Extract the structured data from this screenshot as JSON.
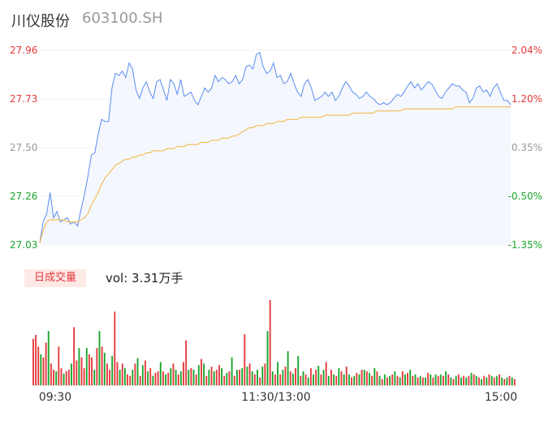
{
  "header": {
    "name": "川仪股份",
    "code": "603100.SH"
  },
  "volume_panel": {
    "tab_label": "日成交量",
    "vol_text": "vol: 3.31万手"
  },
  "colors": {
    "up": "#e5393b",
    "down": "#1aa52c",
    "price_line": "#5b8def",
    "avg_line": "#f3b33d"
  },
  "chart_data": [
    {
      "type": "line",
      "y_left_ticks": [
        "27.96",
        "27.73",
        "27.50",
        "27.26",
        "27.03"
      ],
      "y_right_ticks": [
        "2.04%",
        "1.20%",
        "0.35%",
        "-0.50%",
        "-1.35%"
      ],
      "ylim": [
        27.03,
        27.96
      ],
      "x_ticks": [
        "09:30",
        "11:30/13:00",
        "15:00"
      ],
      "series": [
        {
          "values": [
            27.04,
            27.14,
            27.18,
            27.28,
            27.16,
            27.19,
            27.14,
            27.15,
            27.16,
            27.13,
            27.14,
            27.12,
            27.2,
            27.27,
            27.36,
            27.46,
            27.47,
            27.56,
            27.63,
            27.62,
            27.62,
            27.78,
            27.85,
            27.84,
            27.86,
            27.83,
            27.9,
            27.87,
            27.77,
            27.73,
            27.78,
            27.81,
            27.76,
            27.73,
            27.81,
            27.82,
            27.77,
            27.72,
            27.82,
            27.8,
            27.75,
            27.82,
            27.74,
            27.75,
            27.76,
            27.72,
            27.7,
            27.74,
            27.78,
            27.76,
            27.78,
            27.84,
            27.81,
            27.83,
            27.82,
            27.8,
            27.81,
            27.84,
            27.8,
            27.82,
            27.88,
            27.89,
            27.87,
            27.94,
            27.95,
            27.88,
            27.85,
            27.86,
            27.9,
            27.83,
            27.84,
            27.8,
            27.81,
            27.85,
            27.8,
            27.76,
            27.74,
            27.8,
            27.82,
            27.78,
            27.72,
            27.73,
            27.74,
            27.76,
            27.74,
            27.76,
            27.72,
            27.74,
            27.78,
            27.81,
            27.79,
            27.76,
            27.75,
            27.73,
            27.74,
            27.76,
            27.74,
            27.73,
            27.71,
            27.7,
            27.71,
            27.7,
            27.71,
            27.73,
            27.75,
            27.74,
            27.76,
            27.79,
            27.81,
            27.78,
            27.8,
            27.77,
            27.79,
            27.81,
            27.8,
            27.77,
            27.74,
            27.73,
            27.76,
            27.78,
            27.8,
            27.79,
            27.79,
            27.77,
            27.76,
            27.71,
            27.73,
            27.78,
            27.79,
            27.76,
            27.77,
            27.74,
            27.78,
            27.8,
            27.76,
            27.72,
            27.72,
            27.7
          ]
        },
        {
          "values": [
            27.04,
            27.1,
            27.14,
            27.15,
            27.15,
            27.15,
            27.15,
            27.15,
            27.14,
            27.14,
            27.14,
            27.14,
            27.15,
            27.16,
            27.18,
            27.22,
            27.25,
            27.28,
            27.32,
            27.35,
            27.37,
            27.39,
            27.41,
            27.42,
            27.43,
            27.44,
            27.44,
            27.45,
            27.45,
            27.46,
            27.46,
            27.47,
            27.47,
            27.48,
            27.48,
            27.48,
            27.48,
            27.49,
            27.49,
            27.49,
            27.5,
            27.5,
            27.5,
            27.51,
            27.51,
            27.51,
            27.51,
            27.52,
            27.52,
            27.52,
            27.53,
            27.53,
            27.53,
            27.54,
            27.54,
            27.54,
            27.55,
            27.55,
            27.56,
            27.57,
            27.58,
            27.59,
            27.59,
            27.6,
            27.6,
            27.6,
            27.61,
            27.61,
            27.61,
            27.62,
            27.62,
            27.62,
            27.63,
            27.63,
            27.63,
            27.63,
            27.64,
            27.64,
            27.64,
            27.64,
            27.64,
            27.64,
            27.64,
            27.65,
            27.65,
            27.65,
            27.65,
            27.65,
            27.65,
            27.65,
            27.65,
            27.66,
            27.66,
            27.66,
            27.66,
            27.66,
            27.66,
            27.66,
            27.67,
            27.67,
            27.67,
            27.67,
            27.67,
            27.67,
            27.67,
            27.67,
            27.68,
            27.68,
            27.68,
            27.68,
            27.68,
            27.68,
            27.68,
            27.68,
            27.68,
            27.68,
            27.68,
            27.68,
            27.68,
            27.68,
            27.68,
            27.69,
            27.69,
            27.69,
            27.69,
            27.69,
            27.69,
            27.69,
            27.69,
            27.69,
            27.69,
            27.69,
            27.69,
            27.69,
            27.69,
            27.69,
            27.69,
            27.69
          ]
        }
      ]
    },
    {
      "type": "bar",
      "series": [
        {
          "values": [
            60,
            65,
            50,
            40,
            36,
            55,
            70,
            28,
            20,
            18,
            50,
            22,
            15,
            18,
            20,
            28,
            75,
            32,
            48,
            36,
            22,
            48,
            40,
            36,
            20,
            48,
            70,
            50,
            42,
            28,
            20,
            38,
            95,
            30,
            20,
            28,
            22,
            14,
            12,
            20,
            28,
            35,
            12,
            26,
            32,
            18,
            22,
            12,
            16,
            18,
            30,
            18,
            14,
            16,
            22,
            28,
            20,
            14,
            18,
            30,
            58,
            20,
            22,
            20,
            14,
            26,
            34,
            28,
            12,
            20,
            24,
            18,
            20,
            26,
            22,
            12,
            16,
            18,
            36,
            12,
            20,
            20,
            22,
            66,
            24,
            28,
            18,
            14,
            20,
            10,
            24,
            28,
            70,
            110,
            18,
            14,
            30,
            14,
            20,
            24,
            44,
            18,
            15,
            22,
            38,
            12,
            18,
            14,
            10,
            22,
            14,
            20,
            25,
            14,
            20,
            30,
            12,
            20,
            14,
            12,
            22,
            18,
            14,
            24,
            14,
            10,
            12,
            16,
            14,
            20,
            20,
            18,
            16,
            12,
            22,
            18,
            12,
            8,
            14,
            10,
            12,
            14,
            18,
            12,
            10,
            18,
            14,
            16,
            20,
            12,
            14,
            10,
            12,
            10,
            10,
            16,
            14,
            10,
            14,
            12,
            14,
            12,
            18,
            14,
            10,
            8,
            12,
            14,
            10,
            12,
            10,
            12,
            16,
            14,
            12,
            10,
            8,
            12,
            10,
            14,
            12,
            10,
            12,
            14,
            10,
            8,
            10,
            12,
            10,
            8
          ],
          "direction": [
            "up",
            "up",
            "up",
            "down",
            "up",
            "up",
            "down",
            "up",
            "up",
            "down",
            "up",
            "up",
            "down",
            "up",
            "up",
            "down",
            "up",
            "up",
            "down",
            "up",
            "up",
            "down",
            "up",
            "up",
            "down",
            "up",
            "down",
            "up",
            "down",
            "up",
            "up",
            "down",
            "up",
            "up",
            "down",
            "up",
            "down",
            "up",
            "up",
            "down",
            "up",
            "down",
            "up",
            "down",
            "up",
            "down",
            "up",
            "down",
            "up",
            "up",
            "down",
            "up",
            "down",
            "up",
            "down",
            "up",
            "down",
            "up",
            "down",
            "up",
            "up",
            "down",
            "up",
            "down",
            "up",
            "down",
            "up",
            "down",
            "up",
            "down",
            "up",
            "down",
            "up",
            "up",
            "down",
            "up",
            "down",
            "up",
            "down",
            "up",
            "down",
            "up",
            "down",
            "up",
            "down",
            "up",
            "down",
            "up",
            "down",
            "up",
            "down",
            "up",
            "down",
            "up",
            "down",
            "up",
            "down",
            "up",
            "down",
            "up",
            "down",
            "up",
            "down",
            "up",
            "down",
            "up",
            "down",
            "up",
            "down",
            "up",
            "down",
            "up",
            "down",
            "up",
            "down",
            "up",
            "down",
            "up",
            "down",
            "up",
            "down",
            "up",
            "down",
            "up",
            "down",
            "up",
            "down",
            "up",
            "down",
            "up",
            "down",
            "up",
            "down",
            "up",
            "down",
            "up",
            "down",
            "up",
            "down",
            "up",
            "down",
            "up",
            "down",
            "up",
            "down",
            "up",
            "down",
            "up",
            "down",
            "up",
            "down",
            "up",
            "down",
            "up",
            "down",
            "up",
            "down",
            "up",
            "down",
            "up",
            "down",
            "up",
            "down",
            "up",
            "down",
            "up",
            "down",
            "up",
            "down",
            "up",
            "down",
            "up",
            "down",
            "up",
            "down",
            "up",
            "down",
            "up",
            "down",
            "up",
            "down",
            "up",
            "down",
            "up",
            "down",
            "up",
            "down",
            "up",
            "down",
            "up",
            "down",
            "up",
            "down",
            "up",
            "down",
            "up",
            "down",
            "up",
            "down",
            "up"
          ]
        }
      ]
    }
  ]
}
